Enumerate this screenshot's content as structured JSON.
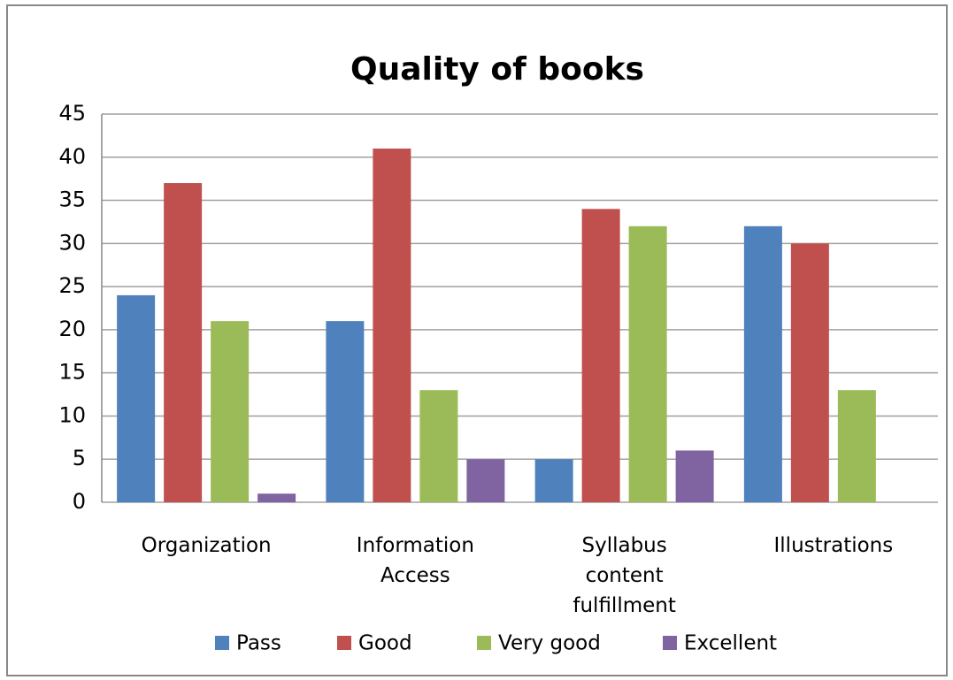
{
  "chart_data": {
    "type": "bar",
    "title": "Quality of books",
    "categories": [
      "Organization",
      "Information Access",
      "Syllabus content fulfillment",
      "Illustrations"
    ],
    "series": [
      {
        "name": "Pass",
        "color": "#4f81bd",
        "values": [
          24,
          21,
          5,
          32
        ]
      },
      {
        "name": "Good",
        "color": "#c0504d",
        "values": [
          37,
          41,
          34,
          30
        ]
      },
      {
        "name": "Very good",
        "color": "#9bbb59",
        "values": [
          21,
          13,
          32,
          13
        ]
      },
      {
        "name": "Excellent",
        "color": "#8064a2",
        "values": [
          1,
          5,
          6,
          0
        ]
      }
    ],
    "ylim": [
      0,
      45
    ],
    "yticks": [
      0,
      5,
      10,
      15,
      20,
      25,
      30,
      35,
      40,
      45
    ],
    "grid": true,
    "legend": "bottom"
  }
}
